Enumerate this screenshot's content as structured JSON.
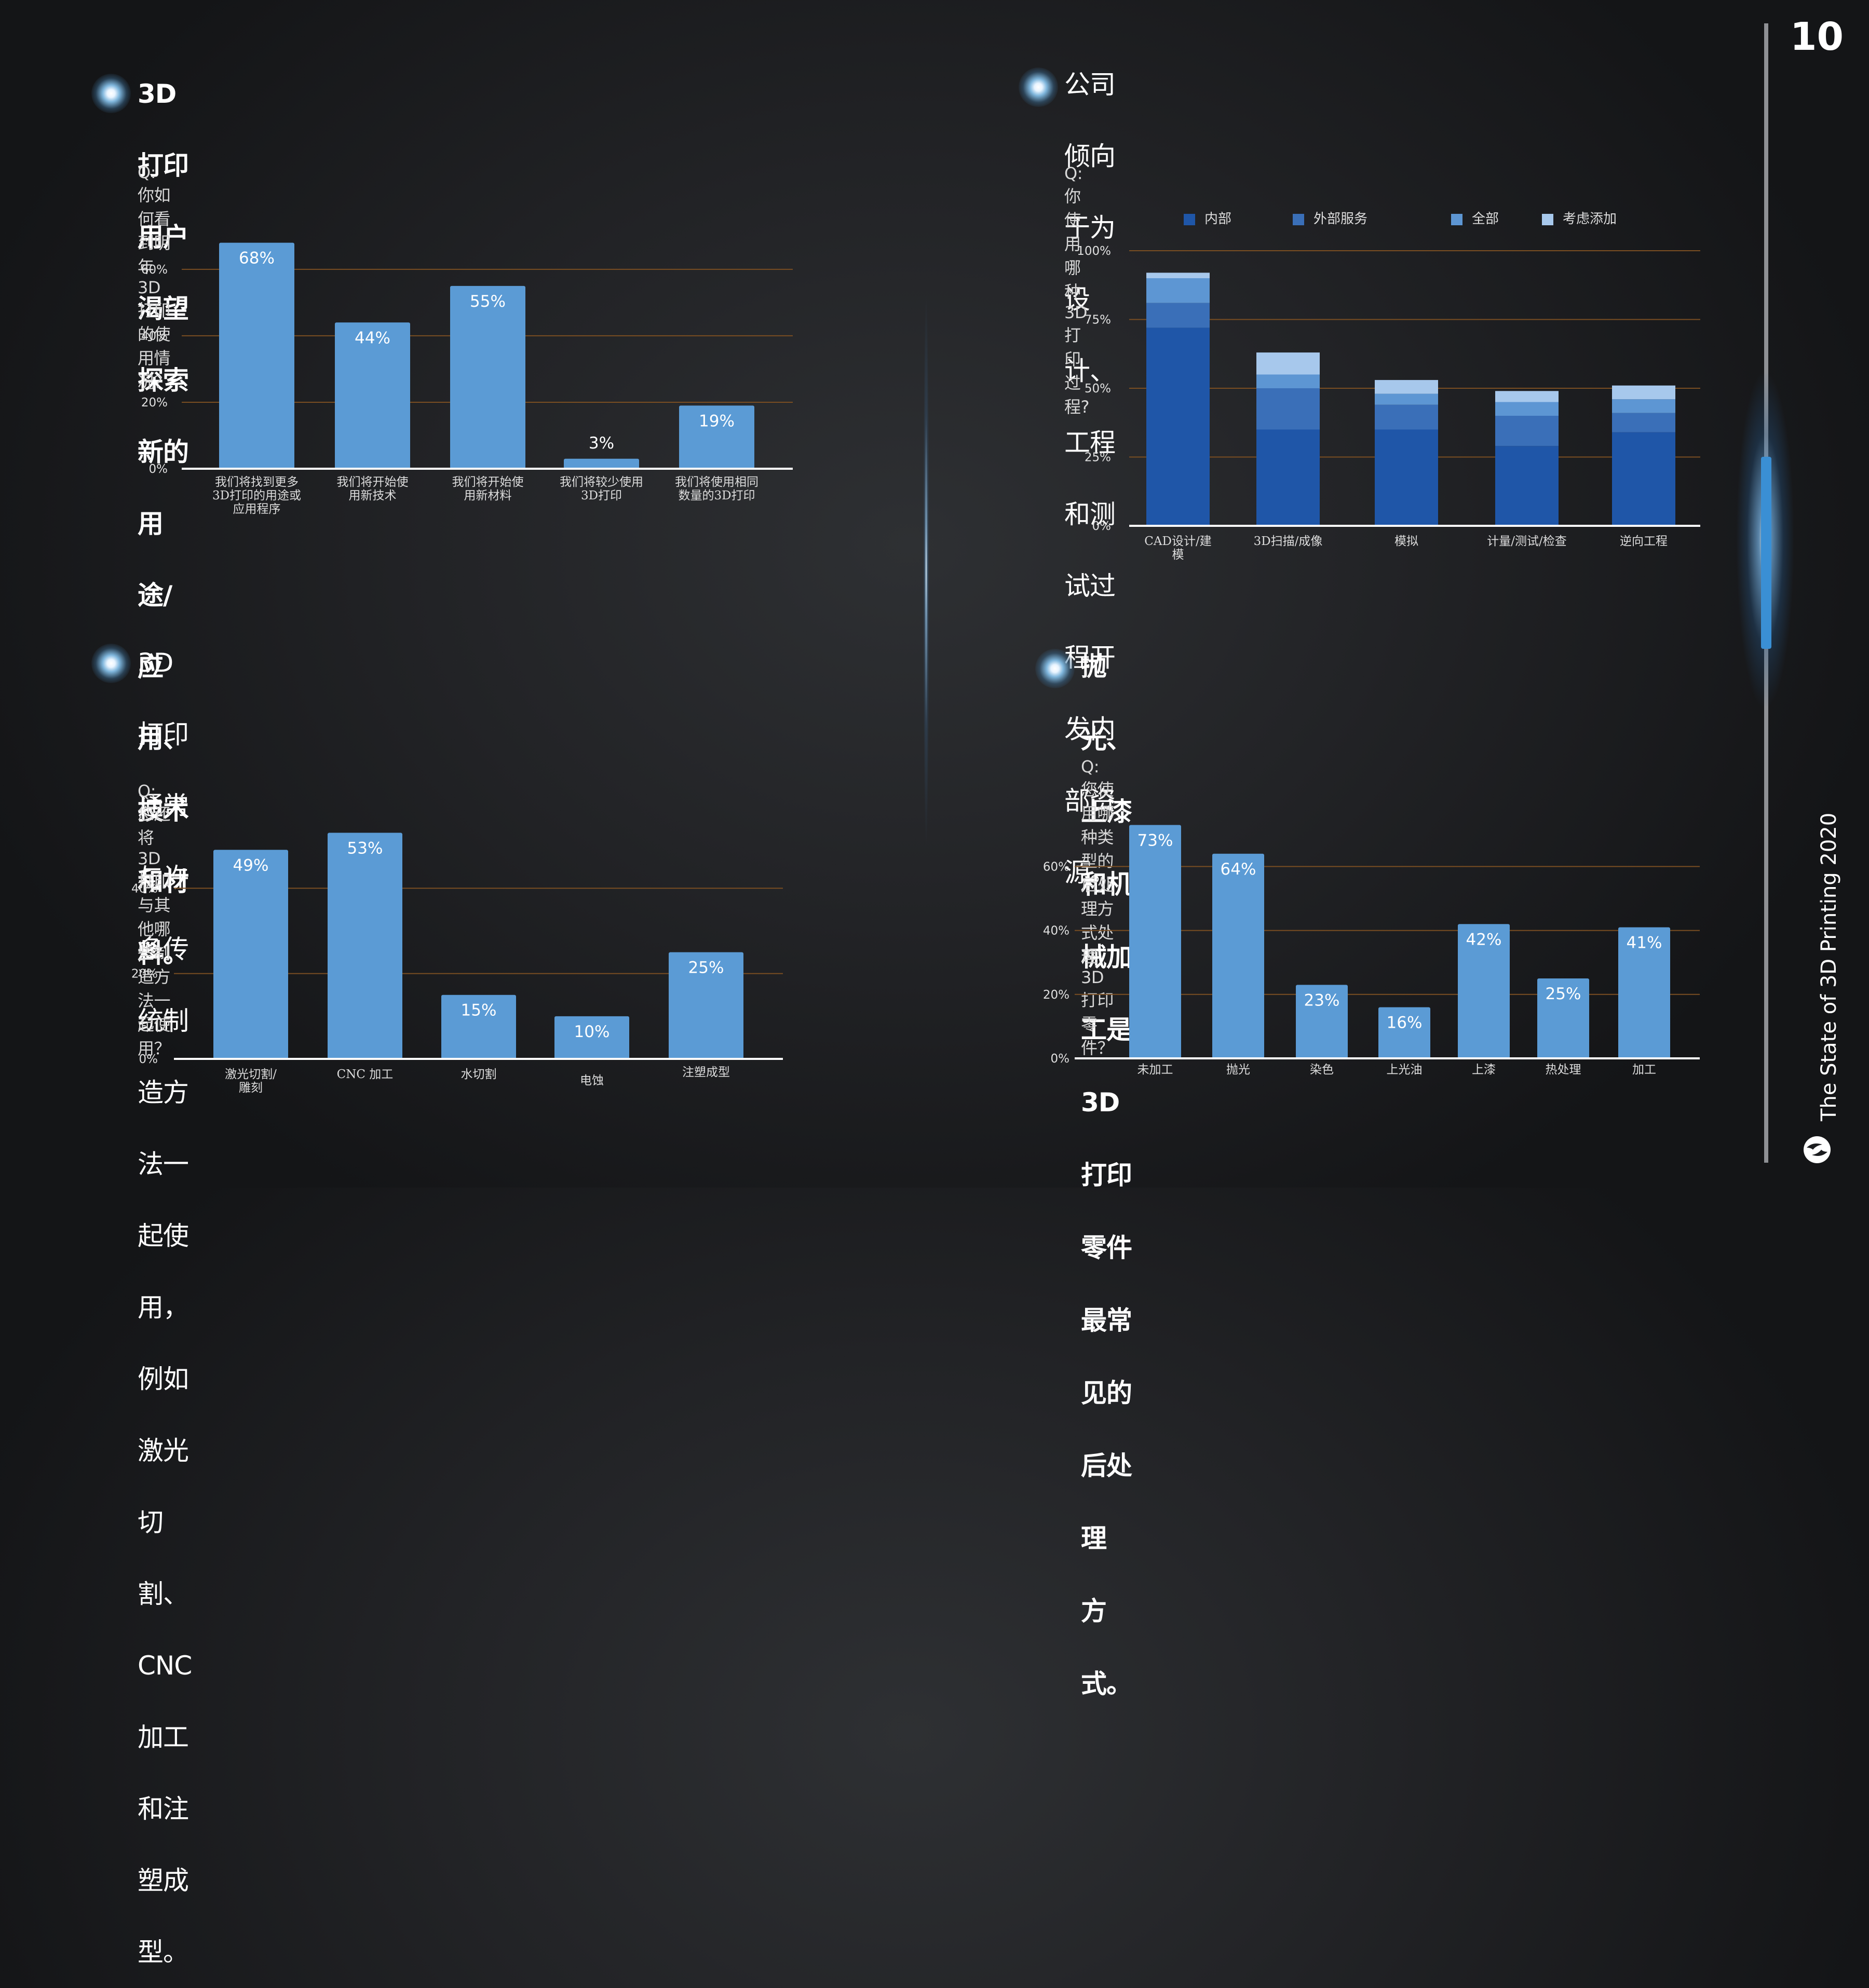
{
  "page": {
    "number": "10",
    "side_title": "The State of 3D Printing 2020"
  },
  "panels": {
    "tl": {
      "heading_lines": [
        "3D打印用户渴望探索新的用途/应用、技术和材料。"
      ],
      "question": "Q: 你如何看到明年3D打印的使用情况？"
    },
    "tr": {
      "heading_lines": [
        "公司倾向于为设计、工程和测试过程开发内部资源。"
      ],
      "question": "Q: 你使用哪种3D打印过程?"
    },
    "bl": {
      "heading_lines": [
        "3D打印通常与许多传统制造方法一起使用，例如激光切",
        "割、CNC加工和注塑成型。"
      ],
      "question": "Q: 您还将3D打印与其他哪些制造方法一起使用？"
    },
    "br": {
      "heading_lines": [
        "抛光、上漆和机械加工是3D打印零件最常见的后处理",
        "方式。"
      ],
      "question": "Q: 您使用哪种类型的后处理方式处理3D打印零件？"
    }
  },
  "colors": {
    "bar": "#5b9bd5",
    "grid": "#7a4e22",
    "stack": [
      "#1f56a8",
      "#3a6fb8",
      "#5d96d3",
      "#a7c8ec"
    ]
  },
  "chart_data": [
    {
      "id": "tl",
      "type": "bar",
      "title": "",
      "categories": [
        [
          "我们将找到更多",
          "3D打印的用途或",
          "应用程序"
        ],
        [
          "我们将开始使",
          "用新技术"
        ],
        [
          "我们将开始使",
          "用新材料"
        ],
        [
          "我们将较少使用",
          "3D打印"
        ],
        [
          "我们将使用相同",
          "数量的3D打印"
        ]
      ],
      "values": [
        68,
        44,
        55,
        3,
        19
      ],
      "data_labels": [
        "68%",
        "44%",
        "55%",
        "3%",
        "19%"
      ],
      "yticks": [
        "0%",
        "20%",
        "40%",
        "60%"
      ],
      "ylim": [
        0,
        72
      ],
      "grid": true
    },
    {
      "id": "tr",
      "type": "bar",
      "stacked": true,
      "title": "",
      "categories": [
        [
          "CAD设计/建",
          "模"
        ],
        [
          "3D扫描/成像"
        ],
        [
          "模拟"
        ],
        [
          "计量/测试/检查"
        ],
        [
          "逆向工程"
        ]
      ],
      "series": [
        {
          "name": "内部",
          "values": [
            72,
            35,
            35,
            29,
            34
          ]
        },
        {
          "name": "外部服务",
          "values": [
            9,
            15,
            9,
            11,
            7
          ]
        },
        {
          "name": "全部",
          "values": [
            9,
            5,
            4,
            5,
            5
          ]
        },
        {
          "name": "考虑添加",
          "values": [
            2,
            8,
            5,
            4,
            5
          ]
        }
      ],
      "yticks": [
        "0%",
        "25%",
        "50%",
        "75%",
        "100%"
      ],
      "ylim": [
        0,
        100
      ],
      "legend": "top",
      "grid": true
    },
    {
      "id": "bl",
      "type": "bar",
      "title": "",
      "categories": [
        [
          "激光切割/",
          "雕刻"
        ],
        [
          "CNC 加工"
        ],
        [
          "水切割"
        ],
        [
          "电蚀"
        ],
        [
          "注塑成型"
        ]
      ],
      "values": [
        49,
        53,
        15,
        10,
        25
      ],
      "data_labels": [
        "49%",
        "53%",
        "15%",
        "10%",
        "25%"
      ],
      "yticks": [
        "0%",
        "20%",
        "40%"
      ],
      "ylim": [
        0,
        55
      ],
      "grid": true
    },
    {
      "id": "br",
      "type": "bar",
      "title": "",
      "categories": [
        [
          "未加工"
        ],
        [
          "抛光"
        ],
        [
          "染色"
        ],
        [
          "上光油"
        ],
        [
          "上漆"
        ],
        [
          "热处理"
        ],
        [
          "加工"
        ]
      ],
      "values": [
        73,
        64,
        23,
        16,
        42,
        25,
        41
      ],
      "data_labels": [
        "73%",
        "64%",
        "23%",
        "16%",
        "42%",
        "25%",
        "41%"
      ],
      "yticks": [
        "0%",
        "20%",
        "40%",
        "60%"
      ],
      "ylim": [
        0,
        75
      ],
      "grid": true
    }
  ]
}
